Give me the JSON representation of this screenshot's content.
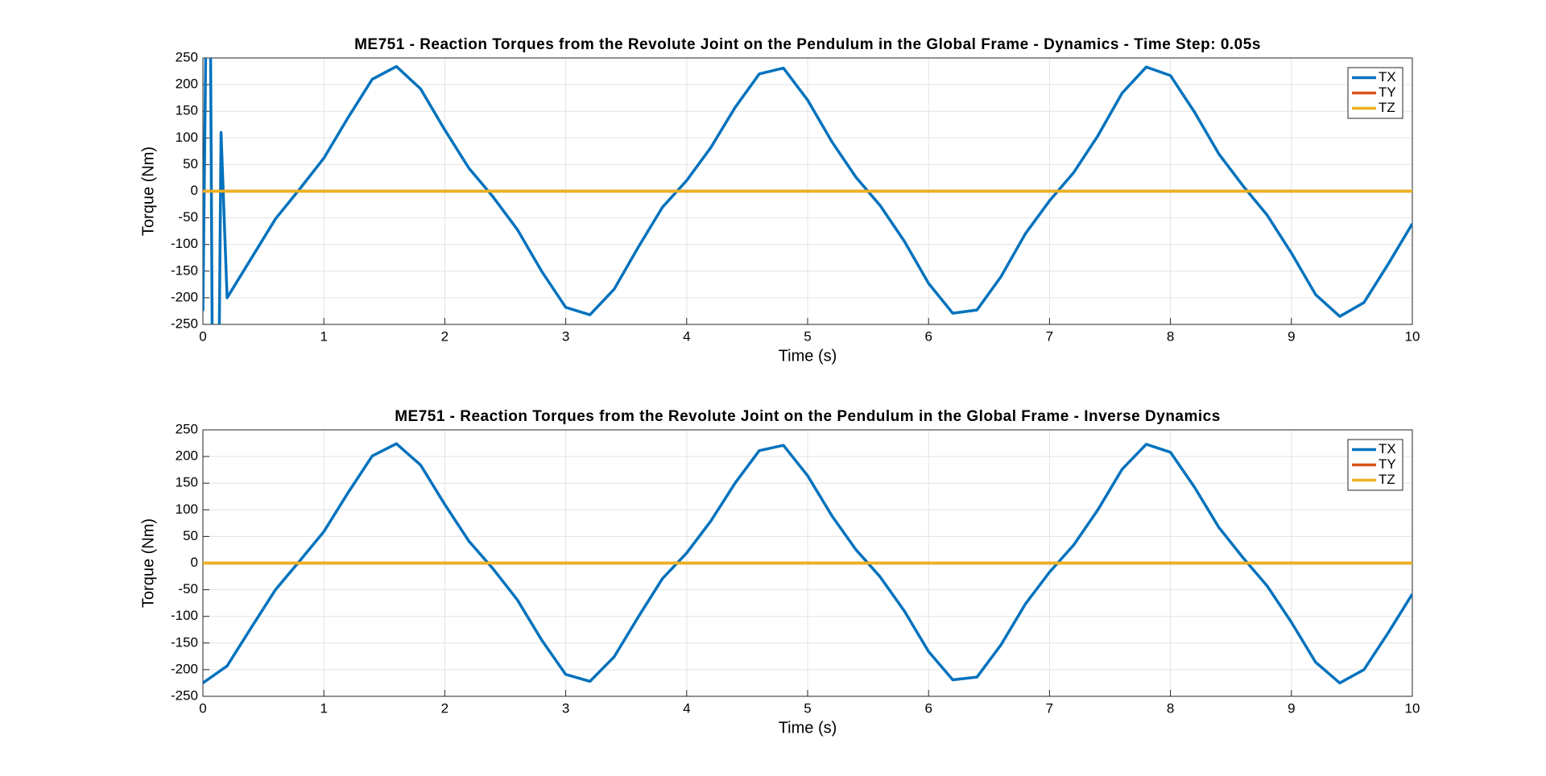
{
  "chart_data": [
    {
      "type": "line",
      "title": "ME751 - Reaction Torques from the Revolute Joint on the Pendulum in the Global Frame - Dynamics - Time Step: 0.05s",
      "xlabel": "Time (s)",
      "ylabel": "Torque (Nm)",
      "x": [
        0,
        0.03,
        0.06,
        0.08,
        0.13,
        0.15,
        0.2,
        0.4,
        0.6,
        0.8,
        1.0,
        1.2,
        1.4,
        1.6,
        1.8,
        2.0,
        2.2,
        2.4,
        2.6,
        2.8,
        3.0,
        3.2,
        3.4,
        3.6,
        3.8,
        4.0,
        4.2,
        4.4,
        4.6,
        4.8,
        5.0,
        5.2,
        5.4,
        5.6,
        5.8,
        6.0,
        6.2,
        6.4,
        6.6,
        6.8,
        7.0,
        7.2,
        7.4,
        7.6,
        7.8,
        8.0,
        8.2,
        8.4,
        8.6,
        8.8,
        9.0,
        9.2,
        9.4,
        9.6,
        9.8,
        10
      ],
      "series": [
        {
          "name": "TX",
          "color": "#0072BD",
          "values": [
            -225,
            400,
            400,
            -400,
            -400,
            110,
            -200,
            -126,
            -52,
            4,
            62,
            138,
            210,
            234,
            192,
            115,
            43,
            -11,
            -72,
            -150,
            -218,
            -232,
            -184,
            -105,
            -30,
            20,
            82,
            157,
            220,
            231,
            171,
            93,
            26,
            -27,
            -94,
            -173,
            -229,
            -223,
            -160,
            -80,
            -18,
            35,
            104,
            184,
            233,
            217,
            148,
            70,
            10,
            -45,
            -116,
            -194,
            -235,
            -209,
            -137,
            -61
          ]
        },
        {
          "name": "TY",
          "color": "#D95319",
          "values": [
            0,
            0,
            0,
            0,
            0,
            0,
            0,
            0,
            0,
            0,
            0,
            0,
            0,
            0,
            0,
            0,
            0,
            0,
            0,
            0,
            0,
            0,
            0,
            0,
            0,
            0,
            0,
            0,
            0,
            0,
            0,
            0,
            0,
            0,
            0,
            0,
            0,
            0,
            0,
            0,
            0,
            0,
            0,
            0,
            0,
            0,
            0,
            0,
            0,
            0,
            0,
            0,
            0,
            0,
            0,
            0
          ]
        },
        {
          "name": "TZ",
          "color": "#EDB120",
          "values": [
            0,
            0,
            0,
            0,
            0,
            0,
            0,
            0,
            0,
            0,
            0,
            0,
            0,
            0,
            0,
            0,
            0,
            0,
            0,
            0,
            0,
            0,
            0,
            0,
            0,
            0,
            0,
            0,
            0,
            0,
            0,
            0,
            0,
            0,
            0,
            0,
            0,
            0,
            0,
            0,
            0,
            0,
            0,
            0,
            0,
            0,
            0,
            0,
            0,
            0,
            0,
            0,
            0,
            0,
            0,
            0
          ]
        }
      ],
      "xlim": [
        0,
        10
      ],
      "xticks": [
        0,
        1,
        2,
        3,
        4,
        5,
        6,
        7,
        8,
        9,
        10
      ],
      "ylim": [
        -250,
        250
      ],
      "yticks": [
        -250,
        -200,
        -150,
        -100,
        -50,
        0,
        50,
        100,
        150,
        200,
        250
      ],
      "grid": true,
      "legend": "upper right"
    },
    {
      "type": "line",
      "title": "ME751 - Reaction Torques from the Revolute Joint on the Pendulum in the Global Frame - Inverse Dynamics",
      "xlabel": "Time (s)",
      "ylabel": "Torque (Nm)",
      "x": [
        0,
        0.2,
        0.4,
        0.6,
        0.8,
        1.0,
        1.2,
        1.4,
        1.6,
        1.8,
        2.0,
        2.2,
        2.4,
        2.6,
        2.8,
        3.0,
        3.2,
        3.4,
        3.6,
        3.8,
        4.0,
        4.2,
        4.4,
        4.6,
        4.8,
        5.0,
        5.2,
        5.4,
        5.6,
        5.8,
        6.0,
        6.2,
        6.4,
        6.6,
        6.8,
        7.0,
        7.2,
        7.4,
        7.6,
        7.8,
        8.0,
        8.2,
        8.4,
        8.6,
        8.8,
        9.0,
        9.2,
        9.4,
        9.6,
        9.8,
        10
      ],
      "series": [
        {
          "name": "TX",
          "color": "#0072BD",
          "values": [
            -225,
            -193,
            -121,
            -50,
            4,
            59,
            132,
            201,
            224,
            184,
            110,
            41,
            -11,
            -69,
            -144,
            -209,
            -222,
            -176,
            -101,
            -29,
            19,
            79,
            150,
            211,
            221,
            164,
            89,
            25,
            -26,
            -90,
            -166,
            -219,
            -214,
            -153,
            -77,
            -17,
            34,
            100,
            176,
            223,
            208,
            142,
            67,
            10,
            -43,
            -111,
            -186,
            -225,
            -200,
            -131,
            -58
          ]
        },
        {
          "name": "TY",
          "color": "#D95319",
          "values": [
            0,
            0,
            0,
            0,
            0,
            0,
            0,
            0,
            0,
            0,
            0,
            0,
            0,
            0,
            0,
            0,
            0,
            0,
            0,
            0,
            0,
            0,
            0,
            0,
            0,
            0,
            0,
            0,
            0,
            0,
            0,
            0,
            0,
            0,
            0,
            0,
            0,
            0,
            0,
            0,
            0,
            0,
            0,
            0,
            0,
            0,
            0,
            0,
            0,
            0,
            0
          ]
        },
        {
          "name": "TZ",
          "color": "#EDB120",
          "values": [
            0,
            0,
            0,
            0,
            0,
            0,
            0,
            0,
            0,
            0,
            0,
            0,
            0,
            0,
            0,
            0,
            0,
            0,
            0,
            0,
            0,
            0,
            0,
            0,
            0,
            0,
            0,
            0,
            0,
            0,
            0,
            0,
            0,
            0,
            0,
            0,
            0,
            0,
            0,
            0,
            0,
            0,
            0,
            0,
            0,
            0,
            0,
            0,
            0,
            0,
            0
          ]
        }
      ],
      "xlim": [
        0,
        10
      ],
      "xticks": [
        0,
        1,
        2,
        3,
        4,
        5,
        6,
        7,
        8,
        9,
        10
      ],
      "ylim": [
        -250,
        250
      ],
      "yticks": [
        -250,
        -200,
        -150,
        -100,
        -50,
        0,
        50,
        100,
        150,
        200,
        250
      ],
      "grid": true,
      "legend": "upper right"
    }
  ]
}
